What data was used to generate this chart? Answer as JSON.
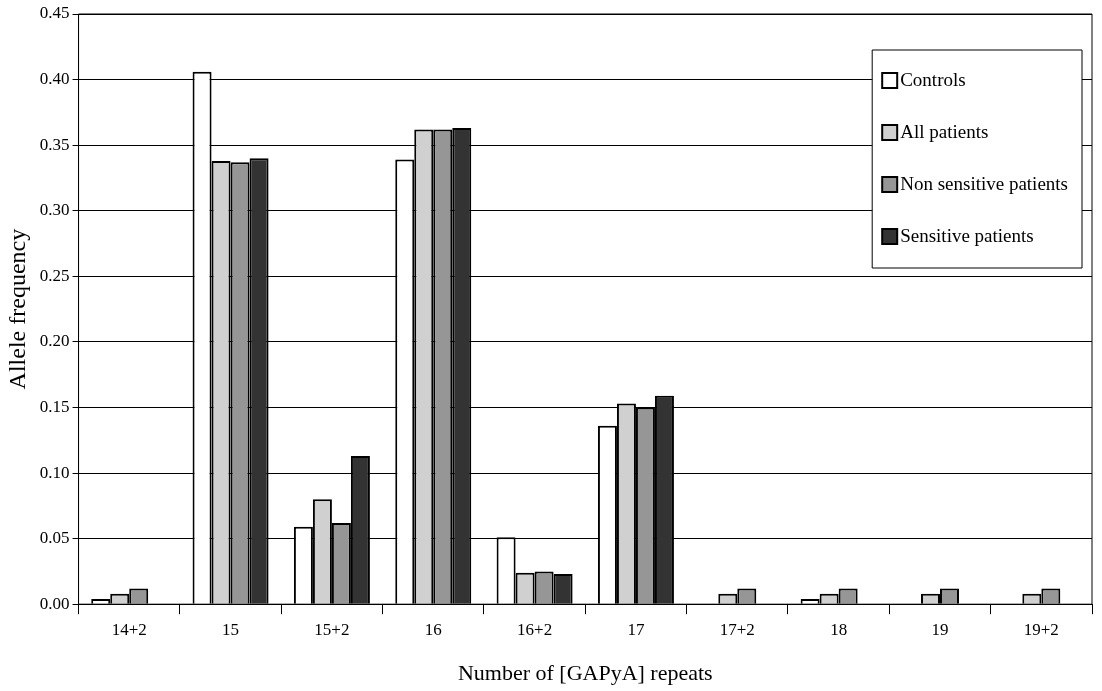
{
  "chart_data": {
    "type": "bar",
    "xlabel": "Number of [GAPyA] repeats",
    "ylabel": "Allele frequency",
    "categories": [
      "14+2",
      "15",
      "15+2",
      "16",
      "16+2",
      "17",
      "17+2",
      "18",
      "19",
      "19+2"
    ],
    "series": [
      {
        "name": "Controls",
        "color": "#ffffff",
        "values": [
          0.004,
          0.406,
          0.059,
          0.339,
          0.051,
          0.136,
          null,
          0.004,
          null,
          null
        ]
      },
      {
        "name": "All patients",
        "color": "#d0d0d0",
        "values": [
          0.008,
          0.338,
          0.08,
          0.362,
          0.024,
          0.153,
          0.008,
          0.008,
          0.008,
          0.008
        ]
      },
      {
        "name": "Non sensitive patients",
        "color": "#969696",
        "values": [
          0.012,
          0.337,
          0.062,
          0.362,
          0.025,
          0.15,
          0.012,
          0.012,
          0.012,
          0.012
        ]
      },
      {
        "name": "Sensitive patients",
        "color": "#333333",
        "values": [
          null,
          0.34,
          0.113,
          0.363,
          0.023,
          0.159,
          null,
          null,
          null,
          null
        ]
      }
    ],
    "ylim": [
      0,
      0.45
    ],
    "yticks": [
      {
        "value": 0,
        "label": "0.00"
      },
      {
        "value": 0.05,
        "label": "0.05"
      },
      {
        "value": 0.1,
        "label": "0.10"
      },
      {
        "value": 0.15,
        "label": "0.15"
      },
      {
        "value": 0.2,
        "label": "0.20"
      },
      {
        "value": 0.25,
        "label": "0.25"
      },
      {
        "value": 0.3,
        "label": "0.30"
      },
      {
        "value": 0.35,
        "label": "0.35"
      },
      {
        "value": 0.4,
        "label": "0.40"
      },
      {
        "value": 0.45,
        "label": "0.45"
      }
    ],
    "grid": "y",
    "legend": "top right"
  }
}
